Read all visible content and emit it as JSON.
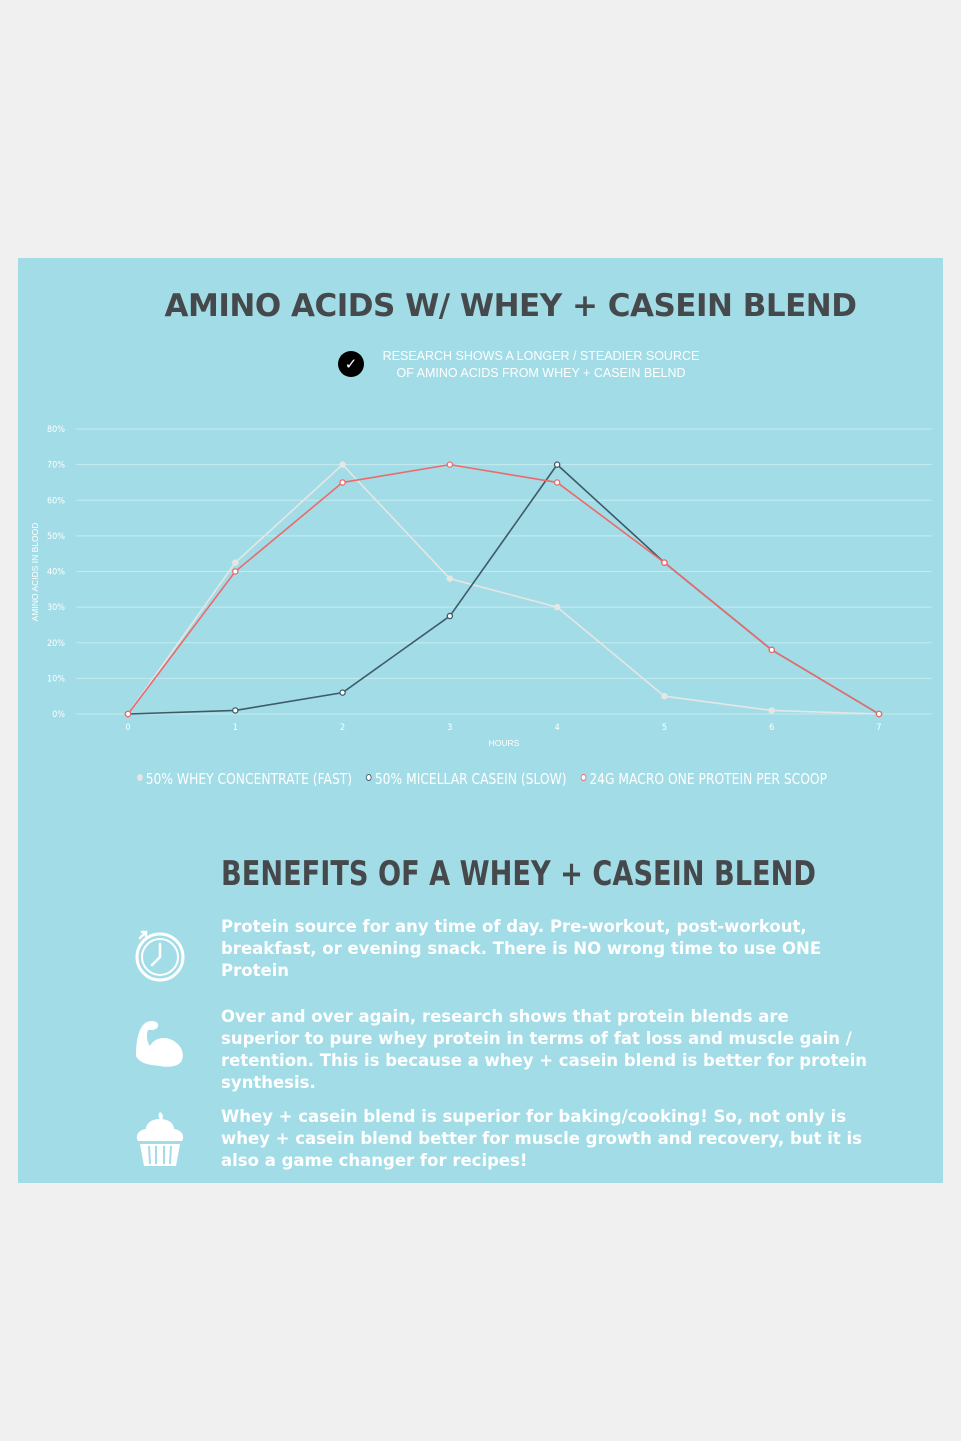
{
  "title": "AMINO ACIDS W/ WHEY + CASEIN BLEND",
  "subtitle": "RESEARCH SHOWS A LONGER / STEADIER SOURCE\nOF AMINO ACIDS FROM WHEY + CASEIN BELND",
  "chart_data": {
    "type": "line",
    "xlabel": "HOURS",
    "ylabel": "AMINO ACIDS IN BLOOD",
    "x": [
      0,
      1,
      2,
      3,
      4,
      5,
      6,
      7
    ],
    "xticks": [
      "0",
      "1",
      "2",
      "3",
      "4",
      "5",
      "6",
      "7"
    ],
    "ylim": [
      0,
      80
    ],
    "yticks": [
      "0%",
      "10%",
      "20%",
      "30%",
      "40%",
      "50%",
      "60%",
      "70%",
      "80%"
    ],
    "grid": true,
    "legend_position": "bottom",
    "series": [
      {
        "name": "50% WHEY CONCENTRATE (FAST)",
        "color": "#e6e6e6",
        "values": [
          0,
          42.5,
          70,
          38,
          30,
          5,
          1,
          0
        ]
      },
      {
        "name": "50% MICELLAR CASEIN (SLOW)",
        "color": "#3e5b66",
        "values": [
          0,
          1,
          6,
          27.5,
          70,
          42.5,
          18,
          0
        ]
      },
      {
        "name": "24G MACRO ONE PROTEIN PER SCOOP",
        "color": "#ec6a6a",
        "values": [
          0,
          40,
          65,
          70,
          65,
          42.5,
          18,
          0
        ]
      }
    ]
  },
  "benefits": {
    "title": "BENEFITS OF A WHEY + CASEIN BLEND",
    "items": [
      {
        "icon": "clock-icon",
        "text": "Protein source for any time of day. Pre-workout, post-workout, breakfast, or evening snack. There is NO wrong time to use ONE Protein"
      },
      {
        "icon": "flexed-bicep-icon",
        "text": "Over and over again, research shows that protein blends are superior to pure whey protein in terms of fat loss and muscle gain / retention. This is because a whey + casein blend is better for protein synthesis."
      },
      {
        "icon": "cupcake-icon",
        "text": "Whey + casein blend is superior for baking/cooking! So, not only is whey + casein blend better for muscle growth and recovery, but it is also a game changer for recipes!"
      }
    ]
  }
}
